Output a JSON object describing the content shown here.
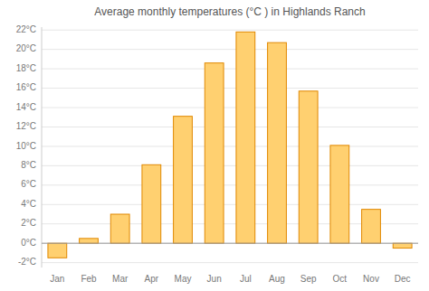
{
  "chart_data": {
    "type": "bar",
    "title": "Average monthly temperatures (°C ) in Highlands Ranch",
    "categories": [
      "Jan",
      "Feb",
      "Mar",
      "Apr",
      "May",
      "Jun",
      "Jul",
      "Aug",
      "Sep",
      "Oct",
      "Nov",
      "Dec"
    ],
    "values": [
      -1.5,
      0.5,
      3.0,
      8.1,
      13.1,
      18.6,
      21.8,
      20.7,
      15.7,
      10.1,
      3.5,
      -0.5
    ],
    "color": "#FFD070",
    "ylim": [
      -2.5,
      22.3
    ],
    "yticks": [
      {
        "value": -2,
        "label": "-2°C"
      },
      {
        "value": 0,
        "label": "0°C"
      },
      {
        "value": 2,
        "label": "2°C"
      },
      {
        "value": 4,
        "label": "4°C"
      },
      {
        "value": 6,
        "label": "6°C"
      },
      {
        "value": 8,
        "label": "8°C"
      },
      {
        "value": 10,
        "label": "10°C"
      },
      {
        "value": 12,
        "label": "12°C"
      },
      {
        "value": 14,
        "label": "14°C"
      },
      {
        "value": 16,
        "label": "16°C"
      },
      {
        "value": 18,
        "label": "18°C"
      },
      {
        "value": 20,
        "label": "20°C"
      },
      {
        "value": 22,
        "label": "22°C"
      }
    ],
    "grid": true
  }
}
